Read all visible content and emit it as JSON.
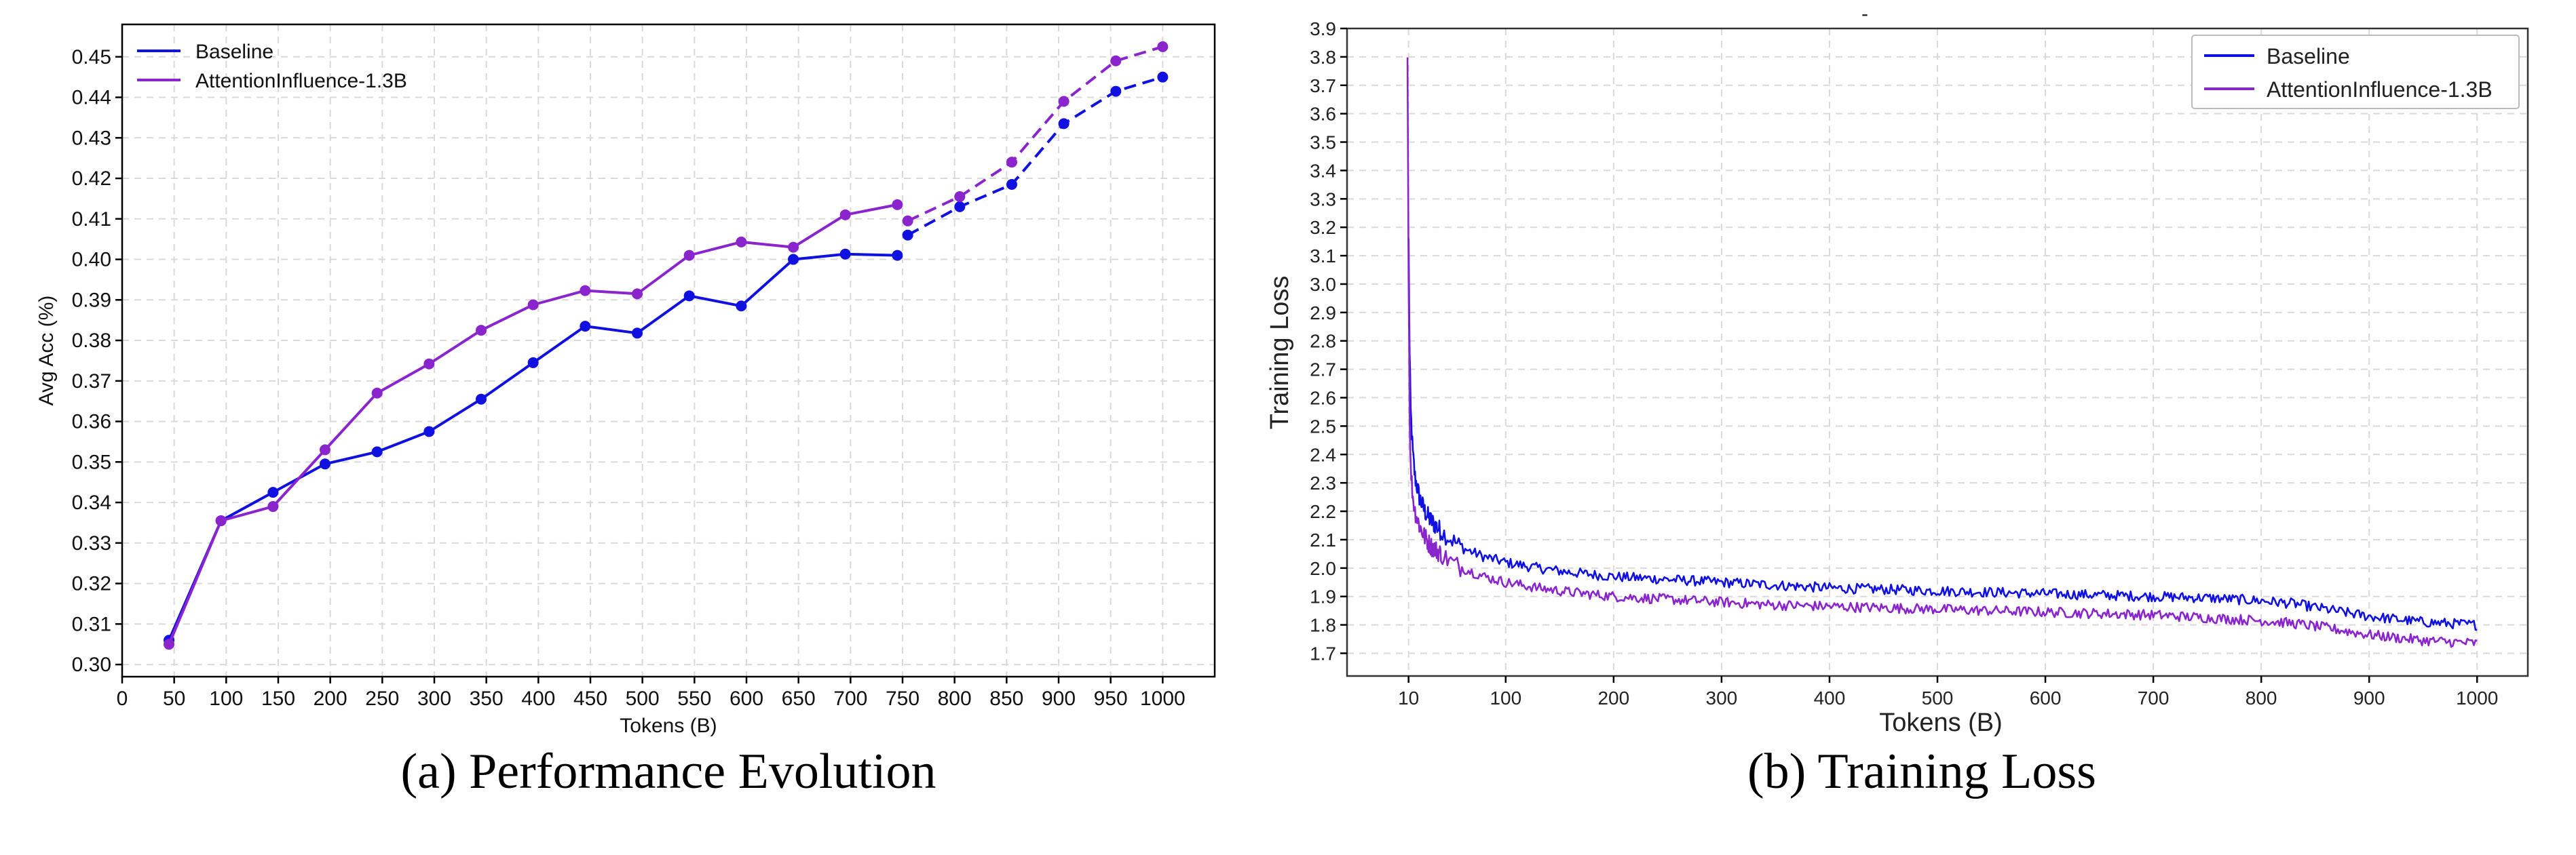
{
  "colors": {
    "baseline": "#1010e0",
    "influence": "#8a24cc"
  },
  "chart_data": [
    {
      "type": "line",
      "caption": "(a) Performance Evolution",
      "xlabel": "Tokens (B)",
      "ylabel": "Avg Acc (%)",
      "xlim": [
        0,
        1050
      ],
      "ylim": [
        0.297,
        0.458
      ],
      "xticks": [
        0,
        50,
        100,
        150,
        200,
        250,
        300,
        350,
        400,
        450,
        500,
        550,
        600,
        650,
        700,
        750,
        800,
        850,
        900,
        950,
        1000
      ],
      "yticks": [
        0.3,
        0.31,
        0.32,
        0.33,
        0.34,
        0.35,
        0.36,
        0.37,
        0.38,
        0.39,
        0.4,
        0.41,
        0.42,
        0.43,
        0.44,
        0.45
      ],
      "ytick_labels": [
        "0.30",
        "0.31",
        "0.32",
        "0.33",
        "0.34",
        "0.35",
        "0.36",
        "0.37",
        "0.38",
        "0.39",
        "0.40",
        "0.41",
        "0.42",
        "0.43",
        "0.44",
        "0.45"
      ],
      "grid": true,
      "legend_position": "top-left",
      "series": [
        {
          "name": "Baseline",
          "color_key": "baseline",
          "solid_x": [
            45,
            95,
            145,
            195,
            245,
            295,
            345,
            395,
            445,
            495,
            545,
            595,
            645,
            695,
            745
          ],
          "solid_y": [
            0.306,
            0.3355,
            0.3425,
            0.3495,
            0.3525,
            0.3575,
            0.3655,
            0.3745,
            0.3835,
            0.3818,
            0.391,
            0.3885,
            0.4,
            0.4013,
            0.401
          ],
          "dashed_x": [
            755,
            805,
            855,
            905,
            955,
            1000
          ],
          "dashed_y": [
            0.406,
            0.413,
            0.4185,
            0.4335,
            0.4415,
            0.445
          ]
        },
        {
          "name": "AttentionInfluence-1.3B",
          "color_key": "influence",
          "solid_x": [
            45,
            95,
            145,
            195,
            245,
            295,
            345,
            395,
            445,
            495,
            545,
            595,
            645,
            695,
            745
          ],
          "solid_y": [
            0.305,
            0.3355,
            0.339,
            0.353,
            0.367,
            0.3742,
            0.3825,
            0.3888,
            0.3923,
            0.3915,
            0.401,
            0.4043,
            0.403,
            0.411,
            0.4135
          ],
          "dashed_x": [
            755,
            805,
            855,
            905,
            955,
            1000
          ],
          "dashed_y": [
            0.4095,
            0.4155,
            0.424,
            0.439,
            0.449,
            0.4525
          ]
        }
      ]
    },
    {
      "type": "line",
      "caption": "(b) Training Loss",
      "title": "-",
      "xlabel": "Tokens (B)",
      "ylabel": "Training Loss",
      "xlim": [
        -47,
        1047
      ],
      "ylim": [
        1.62,
        3.9
      ],
      "xticks": [
        10,
        100,
        200,
        300,
        400,
        500,
        600,
        700,
        800,
        900,
        1000
      ],
      "yticks": [
        1.7,
        1.8,
        1.9,
        2.0,
        2.1,
        2.2,
        2.3,
        2.4,
        2.5,
        2.6,
        2.7,
        2.8,
        2.9,
        3.0,
        3.1,
        3.2,
        3.3,
        3.4,
        3.5,
        3.6,
        3.7,
        3.8,
        3.9
      ],
      "ytick_labels": [
        "1.7",
        "1.8",
        "1.9",
        "2.0",
        "2.1",
        "2.2",
        "2.3",
        "2.4",
        "2.5",
        "2.6",
        "2.7",
        "2.8",
        "2.9",
        "3.0",
        "3.1",
        "3.2",
        "3.3",
        "3.4",
        "3.5",
        "3.6",
        "3.7",
        "3.8",
        "3.9"
      ],
      "grid": true,
      "legend_position": "top-right",
      "series": [
        {
          "name": "Baseline",
          "color_key": "baseline",
          "x": [
            10,
            11,
            12,
            14,
            16,
            20,
            25,
            30,
            40,
            50,
            60,
            80,
            100,
            130,
            160,
            200,
            250,
            300,
            350,
            400,
            450,
            500,
            550,
            600,
            650,
            700,
            750,
            800,
            830,
            860,
            900,
            950,
            1000
          ],
          "y": [
            3.15,
            2.75,
            2.55,
            2.4,
            2.32,
            2.25,
            2.2,
            2.17,
            2.13,
            2.1,
            2.07,
            2.04,
            2.02,
            2.0,
            1.985,
            1.97,
            1.96,
            1.95,
            1.94,
            1.93,
            1.925,
            1.92,
            1.915,
            1.91,
            1.905,
            1.9,
            1.895,
            1.885,
            1.875,
            1.855,
            1.83,
            1.81,
            1.8
          ]
        },
        {
          "name": "AttentionInfluence-1.3B",
          "color_key": "influence",
          "x": [
            9,
            10,
            11,
            12,
            14,
            16,
            20,
            25,
            30,
            40,
            50,
            60,
            80,
            100,
            130,
            160,
            200,
            250,
            300,
            350,
            400,
            450,
            500,
            550,
            600,
            650,
            700,
            750,
            800,
            830,
            860,
            900,
            950,
            1000
          ],
          "y": [
            3.8,
            3.05,
            2.55,
            2.35,
            2.25,
            2.2,
            2.15,
            2.11,
            2.08,
            2.05,
            2.02,
            2.0,
            1.97,
            1.95,
            1.93,
            1.915,
            1.9,
            1.89,
            1.88,
            1.87,
            1.865,
            1.86,
            1.855,
            1.85,
            1.845,
            1.84,
            1.835,
            1.825,
            1.815,
            1.805,
            1.79,
            1.765,
            1.745,
            1.735
          ]
        }
      ]
    }
  ]
}
